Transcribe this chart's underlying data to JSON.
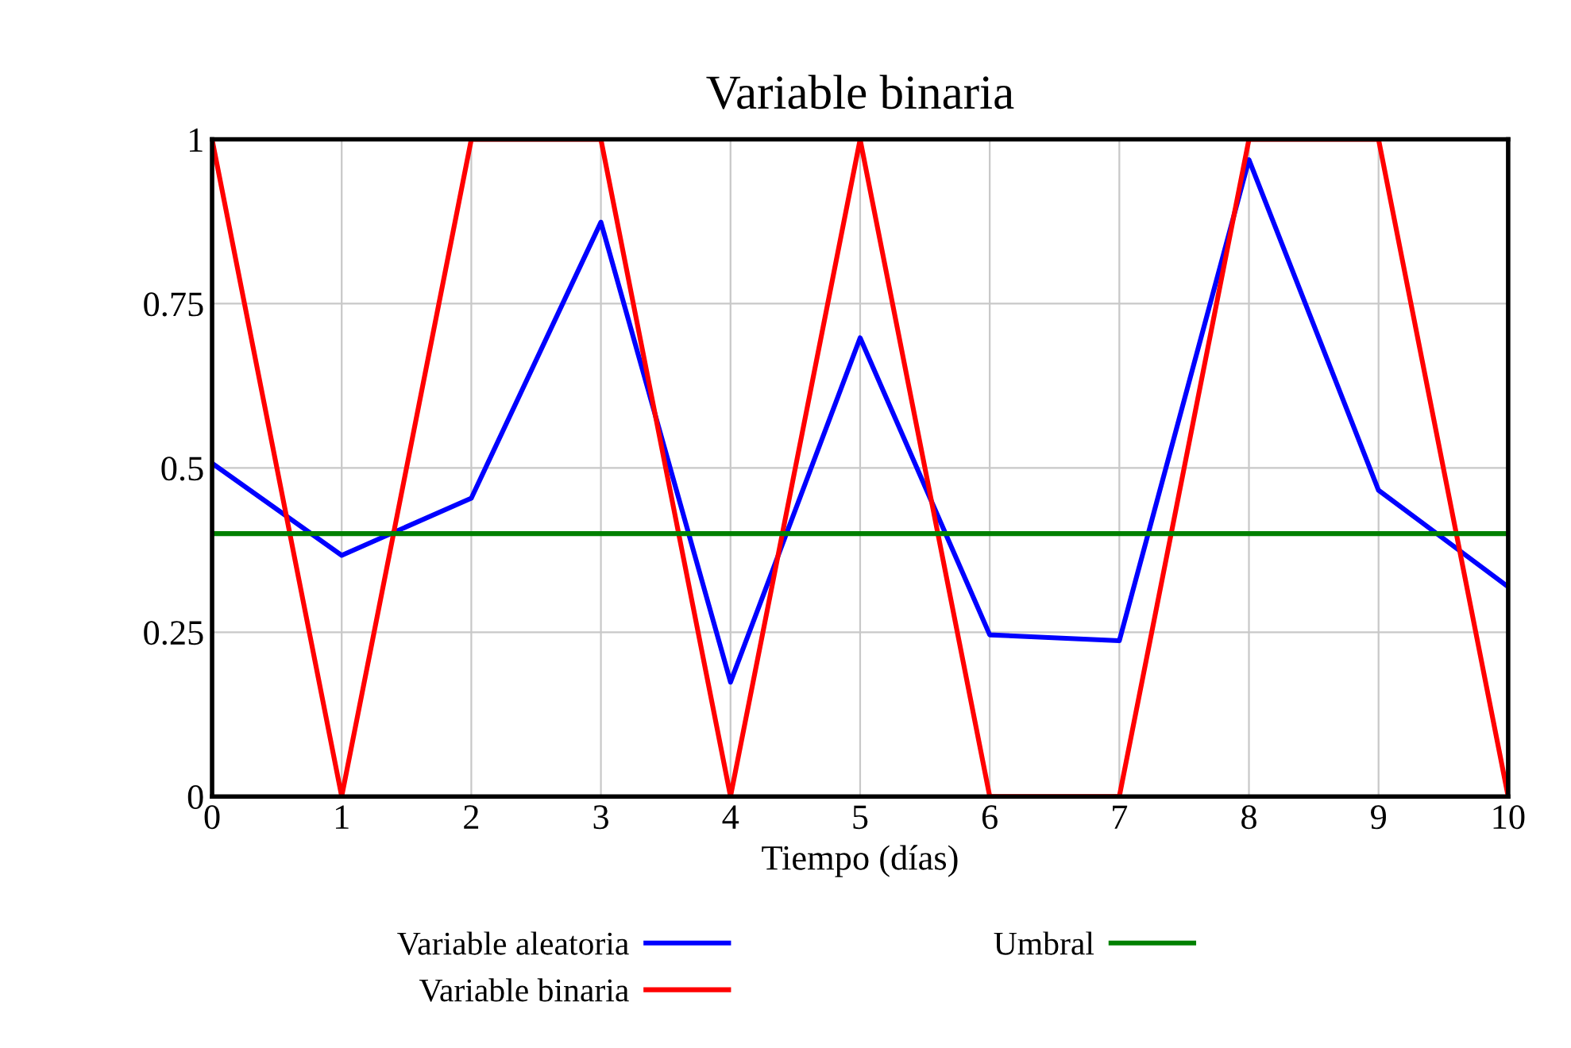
{
  "chart_data": {
    "type": "line",
    "title": "Variable binaria",
    "xlabel": "Tiempo (días)",
    "x": [
      0,
      1,
      2,
      3,
      4,
      5,
      6,
      7,
      8,
      9,
      10
    ],
    "series": [
      {
        "name": "Variable aleatoria",
        "color": "#0000ff",
        "values": [
          0.507,
          0.367,
          0.454,
          0.874,
          0.174,
          0.698,
          0.246,
          0.237,
          0.969,
          0.466,
          0.319
        ]
      },
      {
        "name": "Variable binaria",
        "color": "#ff0000",
        "values": [
          1,
          0,
          1,
          1,
          0,
          1,
          0,
          0,
          1,
          1,
          0
        ]
      },
      {
        "name": "Umbral",
        "color": "#008000",
        "values": [
          0.4,
          0.4,
          0.4,
          0.4,
          0.4,
          0.4,
          0.4,
          0.4,
          0.4,
          0.4,
          0.4
        ]
      }
    ],
    "xlim": [
      0,
      10
    ],
    "xticks": [
      0,
      1,
      2,
      3,
      4,
      5,
      6,
      7,
      8,
      9,
      10
    ],
    "ylim": [
      0,
      1
    ],
    "yticks": [
      0,
      0.25,
      0.5,
      0.75,
      1
    ],
    "grid": true,
    "legend": "bottom",
    "marker": "none",
    "line_style": "solid"
  }
}
